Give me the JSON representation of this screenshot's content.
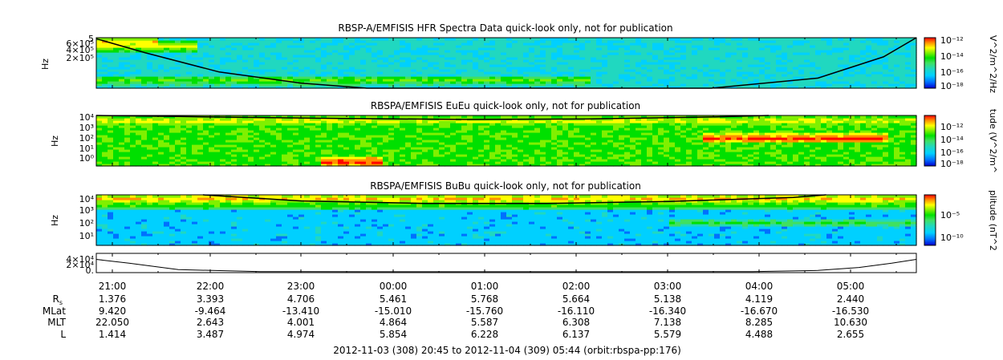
{
  "chart_data": [
    {
      "type": "heatmap",
      "title": "RBSP-A/EMFISIS  HFR Spectra Data quick-look only, not for publication",
      "ylabel": "Hz",
      "yscale": "log",
      "ylim": [
        10000,
        500000
      ],
      "yticks": [
        "5",
        "6×10⁵",
        "4×10⁵",
        "2×10⁵"
      ],
      "colorbar": {
        "label": "V^2/m^2/Hz",
        "ticks": [
          "10⁻¹²",
          "10⁻¹⁴",
          "10⁻¹⁶",
          "10⁻¹⁸"
        ]
      },
      "colormap": [
        "#0000d0",
        "#0070ff",
        "#00d0ff",
        "#20d8c0",
        "#40e060",
        "#00e000",
        "#80f000",
        "#ffff00",
        "#ff9000",
        "#ff0000"
      ],
      "background_level": 0.32,
      "features": [
        {
          "t0": 0.0,
          "t1": 0.6,
          "f_frac": 0.15,
          "level": 0.6
        },
        {
          "t0": 0.0,
          "t1": 0.12,
          "f_frac": 0.85,
          "level": 0.72
        },
        {
          "t0": 0.0,
          "t1": 0.07,
          "f_frac": 0.93,
          "level": 0.8
        }
      ],
      "overlay_line": {
        "desc": "black curve",
        "points": [
          [
            0.0,
            0.02
          ],
          [
            0.06,
            0.3
          ],
          [
            0.15,
            0.68
          ],
          [
            0.25,
            0.9
          ],
          [
            0.33,
            1.0
          ],
          [
            0.45,
            1.0
          ],
          [
            0.6,
            1.0
          ],
          [
            0.75,
            1.0
          ],
          [
            0.88,
            0.8
          ],
          [
            0.96,
            0.38
          ],
          [
            1.0,
            0.0
          ]
        ]
      }
    },
    {
      "type": "heatmap",
      "title": "RBSPA/EMFISIS  EuEu quick-look only, not for publication",
      "ylabel": "Hz",
      "yscale": "log",
      "ylim": [
        3,
        12000
      ],
      "yticks": [
        "10⁴",
        "10³",
        "10²",
        "10¹",
        "10⁰"
      ],
      "colorbar": {
        "label": "tude (V^2/m^",
        "ticks": [
          "10⁻¹²",
          "10⁻¹⁴",
          "10⁻¹⁶",
          "10⁻¹⁸"
        ]
      },
      "colormap": [
        "#0000d0",
        "#0070ff",
        "#00d0ff",
        "#20d8c0",
        "#40e060",
        "#00e000",
        "#80f000",
        "#ffff00",
        "#ff9000",
        "#ff0000"
      ],
      "background_level": 0.58,
      "features": [
        {
          "t0": 0.0,
          "t1": 1.0,
          "f_frac": 0.92,
          "level": 0.75
        },
        {
          "t0": 0.27,
          "t1": 0.35,
          "f_frac": 0.06,
          "level": 0.95
        },
        {
          "t0": 0.74,
          "t1": 0.97,
          "f_frac": 0.55,
          "level": 0.93
        }
      ],
      "overlay_line": {
        "desc": "black curve",
        "points": [
          [
            0.0,
            0.0
          ],
          [
            0.1,
            0.02
          ],
          [
            0.3,
            0.06
          ],
          [
            0.45,
            0.08
          ],
          [
            0.6,
            0.07
          ],
          [
            0.75,
            0.03
          ],
          [
            0.82,
            0.0
          ]
        ]
      }
    },
    {
      "type": "heatmap",
      "title": "RBSPA/EMFISIS  BuBu quick-look only, not for publication",
      "ylabel": "Hz",
      "yscale": "log",
      "ylim": [
        3,
        12000
      ],
      "yticks": [
        "10⁴",
        "10³",
        "10²",
        "10¹"
      ],
      "colorbar": {
        "label": "plitude (nT^2",
        "ticks": [
          "10⁻⁵",
          "10⁻¹⁰"
        ]
      },
      "colormap": [
        "#0000d0",
        "#0070ff",
        "#00d0ff",
        "#20d8c0",
        "#40e060",
        "#00e000",
        "#80f000",
        "#ffff00",
        "#ff9000",
        "#ff0000"
      ],
      "background_level": 0.25,
      "features": [
        {
          "t0": 0.0,
          "t1": 1.0,
          "f_frac": 0.82,
          "level": 0.6
        },
        {
          "t0": 0.0,
          "t1": 1.0,
          "f_frac": 0.95,
          "level": 0.8
        },
        {
          "t0": 0.7,
          "t1": 1.0,
          "f_frac": 0.45,
          "level": 0.5
        }
      ],
      "overlay_line": {
        "desc": "black curve",
        "points": [
          [
            0.13,
            0.0
          ],
          [
            0.25,
            0.12
          ],
          [
            0.4,
            0.17
          ],
          [
            0.55,
            0.17
          ],
          [
            0.7,
            0.13
          ],
          [
            0.85,
            0.05
          ],
          [
            0.89,
            0.0
          ]
        ]
      }
    },
    {
      "type": "line",
      "title": "",
      "ylabel": "",
      "ylim": [
        0,
        45000
      ],
      "yticks": [
        "4×10⁴",
        "2×10⁴",
        "0."
      ],
      "x": [
        0.0,
        0.04,
        0.1,
        0.2,
        0.35,
        0.5,
        0.65,
        0.8,
        0.88,
        0.93,
        0.97,
        1.0
      ],
      "y": [
        31000,
        22000,
        7000,
        2500,
        2000,
        2000,
        2000,
        2500,
        5000,
        12000,
        22000,
        31000
      ]
    }
  ],
  "time_axis": {
    "labels": [
      "21:00",
      "22:00",
      "23:00",
      "00:00",
      "01:00",
      "02:00",
      "03:00",
      "04:00",
      "05:00"
    ]
  },
  "ephemeris": {
    "rows": [
      {
        "label": "R",
        "label_sub": "s",
        "values": [
          "1.376",
          "3.393",
          "4.706",
          "5.461",
          "5.768",
          "5.664",
          "5.138",
          "4.119",
          "2.440"
        ]
      },
      {
        "label": "MLat",
        "label_sub": "",
        "values": [
          "9.420",
          "-9.464",
          "-13.410",
          "-15.010",
          "-15.760",
          "-16.110",
          "-16.340",
          "-16.670",
          "-16.530"
        ]
      },
      {
        "label": "MLT",
        "label_sub": "",
        "values": [
          "22.050",
          "2.643",
          "4.001",
          "4.864",
          "5.587",
          "6.308",
          "7.138",
          "8.285",
          "10.630"
        ]
      },
      {
        "label": "L",
        "label_sub": "",
        "values": [
          "1.414",
          "3.487",
          "4.974",
          "5.854",
          "6.228",
          "6.137",
          "5.579",
          "4.488",
          "2.655"
        ]
      }
    ]
  },
  "footer": "2012-11-03 (308) 20:45 to 2012-11-04 (309) 05:44 (orbit:rbspa-pp:176)"
}
